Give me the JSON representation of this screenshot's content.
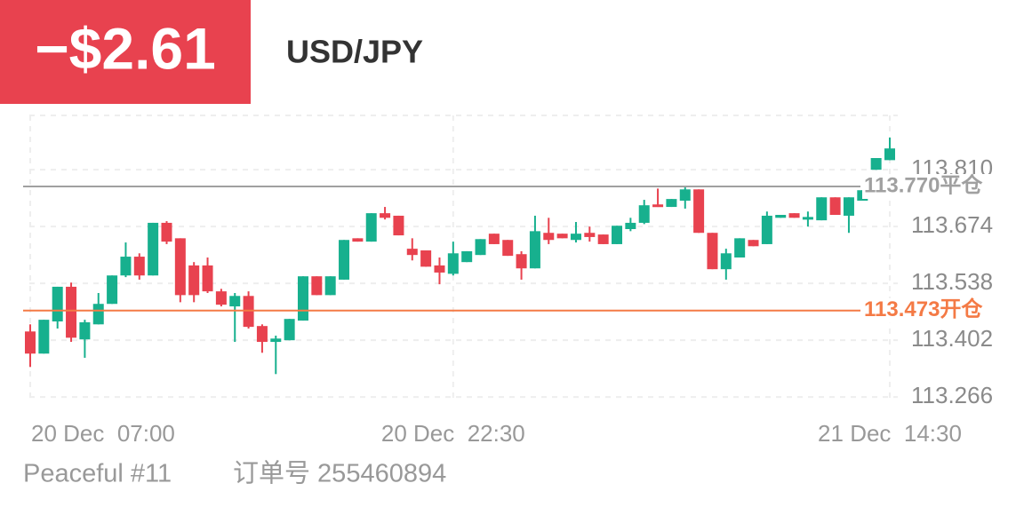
{
  "chart_data": {
    "type": "candlestick",
    "title": "USD/JPY",
    "badge": "−$2.61",
    "footer": [
      "Peaceful #11",
      "订单号 255460894"
    ],
    "categories": [
      "20 Dec  07:00",
      null,
      null,
      null,
      null,
      null,
      null,
      null,
      null,
      null,
      null,
      null,
      null,
      null,
      null,
      null,
      null,
      null,
      null,
      null,
      null,
      null,
      null,
      null,
      null,
      null,
      null,
      null,
      null,
      null,
      null,
      "20 Dec  22:30",
      null,
      null,
      null,
      null,
      null,
      null,
      null,
      null,
      null,
      null,
      null,
      null,
      null,
      null,
      null,
      null,
      null,
      null,
      null,
      null,
      null,
      null,
      null,
      null,
      null,
      null,
      null,
      null,
      null,
      null,
      null,
      "21 Dec  14:30"
    ],
    "open": [
      113.423,
      113.37,
      113.447,
      113.53,
      113.404,
      113.44,
      113.489,
      113.557,
      113.602,
      113.557,
      113.683,
      113.646,
      113.581,
      113.581,
      113.519,
      113.483,
      113.508,
      113.436,
      113.398,
      113.402,
      113.449,
      113.555,
      113.51,
      113.547,
      113.646,
      113.638,
      113.706,
      113.7,
      113.621,
      113.617,
      113.581,
      113.561,
      113.589,
      113.606,
      113.657,
      113.642,
      113.608,
      113.574,
      113.659,
      113.657,
      113.642,
      113.659,
      113.655,
      113.632,
      113.668,
      113.683,
      113.727,
      113.721,
      113.736,
      113.763,
      113.659,
      113.572,
      113.6,
      113.642,
      113.632,
      113.695,
      113.706,
      113.691,
      113.689,
      113.744,
      113.7,
      113.736,
      113.81,
      113.833
    ],
    "high": [
      113.44,
      113.451,
      113.53,
      113.54,
      113.451,
      113.515,
      113.557,
      113.636,
      113.61,
      113.683,
      113.687,
      113.646,
      113.589,
      113.6,
      113.525,
      113.515,
      113.519,
      113.44,
      113.413,
      113.453,
      113.555,
      113.555,
      113.555,
      113.642,
      113.646,
      113.706,
      113.721,
      113.7,
      113.646,
      113.617,
      113.6,
      113.638,
      113.615,
      113.644,
      113.657,
      113.642,
      113.615,
      113.7,
      113.695,
      113.657,
      113.685,
      113.674,
      113.655,
      113.676,
      113.695,
      113.738,
      113.765,
      113.74,
      113.77,
      113.763,
      113.659,
      113.621,
      113.646,
      113.642,
      113.71,
      113.702,
      113.706,
      113.71,
      113.744,
      113.744,
      113.744,
      113.761,
      113.838,
      113.887
    ],
    "low": [
      113.338,
      113.37,
      113.43,
      113.398,
      113.36,
      113.44,
      113.489,
      113.553,
      113.547,
      113.557,
      113.632,
      113.493,
      113.493,
      113.515,
      113.483,
      113.398,
      113.43,
      113.372,
      113.321,
      113.402,
      113.449,
      113.51,
      113.51,
      113.547,
      113.638,
      113.638,
      113.691,
      113.653,
      113.593,
      113.578,
      113.536,
      113.557,
      113.589,
      113.606,
      113.632,
      113.604,
      113.547,
      113.574,
      113.632,
      113.646,
      113.636,
      113.638,
      113.632,
      113.632,
      113.663,
      113.68,
      113.721,
      113.721,
      113.717,
      113.659,
      113.572,
      113.547,
      113.6,
      113.627,
      113.632,
      113.695,
      113.695,
      113.674,
      113.689,
      113.702,
      113.659,
      113.736,
      113.81,
      113.833
    ],
    "close": [
      113.37,
      113.451,
      113.53,
      113.408,
      113.445,
      113.489,
      113.557,
      113.602,
      113.557,
      113.683,
      113.638,
      113.51,
      113.51,
      113.519,
      113.487,
      113.508,
      113.434,
      113.398,
      113.406,
      113.453,
      113.555,
      113.51,
      113.555,
      113.642,
      113.638,
      113.706,
      113.695,
      113.653,
      113.606,
      113.578,
      113.564,
      113.61,
      113.615,
      113.644,
      113.632,
      113.604,
      113.574,
      113.663,
      113.642,
      113.646,
      113.657,
      113.649,
      113.632,
      113.676,
      113.683,
      113.725,
      113.721,
      113.74,
      113.763,
      113.659,
      113.572,
      113.61,
      113.646,
      113.627,
      113.7,
      113.702,
      113.695,
      113.697,
      113.744,
      113.702,
      113.744,
      113.761,
      113.838,
      113.861
    ],
    "up_color": "#17b08e",
    "down_color": "#e8424f",
    "ylim": [
      113.26,
      113.94
    ],
    "yticks": [
      113.266,
      113.402,
      113.538,
      113.674,
      {
        "value": 113.81,
        "label": "113.810"
      }
    ],
    "grid": true,
    "annotations": [
      {
        "value": 113.77,
        "label": "113.770平仓",
        "color": "#a0a0a0"
      },
      {
        "value": 113.473,
        "label": "113.473开仓",
        "color": "#f47a45"
      }
    ]
  }
}
